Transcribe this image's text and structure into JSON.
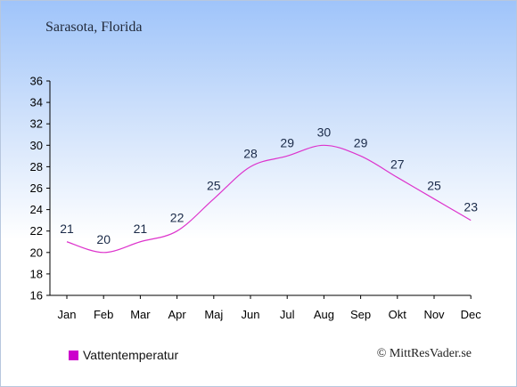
{
  "title": "Sarasota, Florida",
  "credit": "© MittResVader.se",
  "colors": {
    "line": "#dd33cc",
    "legend": "#cc00cc",
    "text": "#1a2a48"
  },
  "chart_data": {
    "type": "line",
    "title": "Sarasota, Florida",
    "xlabel": "",
    "ylabel": "",
    "categories": [
      "Jan",
      "Feb",
      "Mar",
      "Apr",
      "Maj",
      "Jun",
      "Jul",
      "Aug",
      "Sep",
      "Okt",
      "Nov",
      "Dec"
    ],
    "series": [
      {
        "name": "Vattentemperatur",
        "values": [
          21,
          20,
          21,
          22,
          25,
          28,
          29,
          30,
          29,
          27,
          25,
          23
        ]
      }
    ],
    "ylim": [
      16,
      36
    ],
    "yticks": [
      16,
      18,
      20,
      22,
      24,
      26,
      28,
      30,
      32,
      34,
      36
    ],
    "grid": false,
    "legend": "bottom-left"
  }
}
